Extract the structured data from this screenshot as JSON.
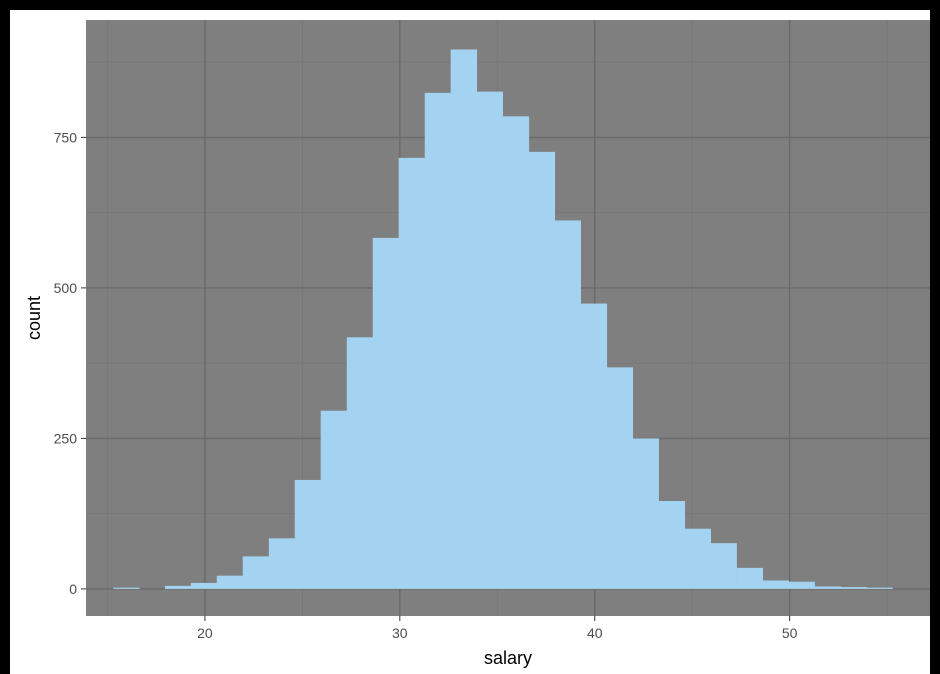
{
  "chart_data": {
    "type": "bar",
    "subtype": "histogram",
    "xlabel": "salary",
    "ylabel": "count",
    "bin_width": 1.333,
    "bins": [
      {
        "x0": 15.3,
        "count": 2
      },
      {
        "x0": 16.6,
        "count": 0
      },
      {
        "x0": 17.95,
        "count": 5
      },
      {
        "x0": 19.28,
        "count": 10
      },
      {
        "x0": 20.61,
        "count": 22
      },
      {
        "x0": 21.94,
        "count": 54
      },
      {
        "x0": 23.28,
        "count": 84
      },
      {
        "x0": 24.61,
        "count": 181
      },
      {
        "x0": 25.94,
        "count": 296
      },
      {
        "x0": 27.28,
        "count": 418
      },
      {
        "x0": 28.61,
        "count": 583
      },
      {
        "x0": 29.94,
        "count": 716
      },
      {
        "x0": 31.28,
        "count": 824
      },
      {
        "x0": 32.61,
        "count": 896
      },
      {
        "x0": 33.94,
        "count": 826
      },
      {
        "x0": 35.28,
        "count": 785
      },
      {
        "x0": 36.61,
        "count": 726
      },
      {
        "x0": 37.94,
        "count": 612
      },
      {
        "x0": 39.28,
        "count": 474
      },
      {
        "x0": 40.61,
        "count": 368
      },
      {
        "x0": 41.94,
        "count": 250
      },
      {
        "x0": 43.28,
        "count": 146
      },
      {
        "x0": 44.61,
        "count": 100
      },
      {
        "x0": 45.94,
        "count": 76
      },
      {
        "x0": 47.28,
        "count": 35
      },
      {
        "x0": 48.61,
        "count": 14
      },
      {
        "x0": 49.94,
        "count": 12
      },
      {
        "x0": 51.28,
        "count": 4
      },
      {
        "x0": 52.61,
        "count": 3
      },
      {
        "x0": 53.94,
        "count": 2
      }
    ],
    "xlim": [
      13.9,
      57.2
    ],
    "ylim": [
      -45,
      945
    ],
    "x_ticks": [
      20,
      30,
      40,
      50
    ],
    "x_tick_labels": [
      "20",
      "30",
      "40",
      "50"
    ],
    "y_ticks": [
      0,
      250,
      500,
      750
    ],
    "y_tick_labels": [
      "0",
      "250",
      "500",
      "750"
    ],
    "grid": true,
    "legend": "none",
    "colors": {
      "panel": "#7f7f7f",
      "grid_major": "#6a6a6a",
      "grid_minor": "#767676",
      "bar_fill": "#a4d3f1"
    }
  }
}
